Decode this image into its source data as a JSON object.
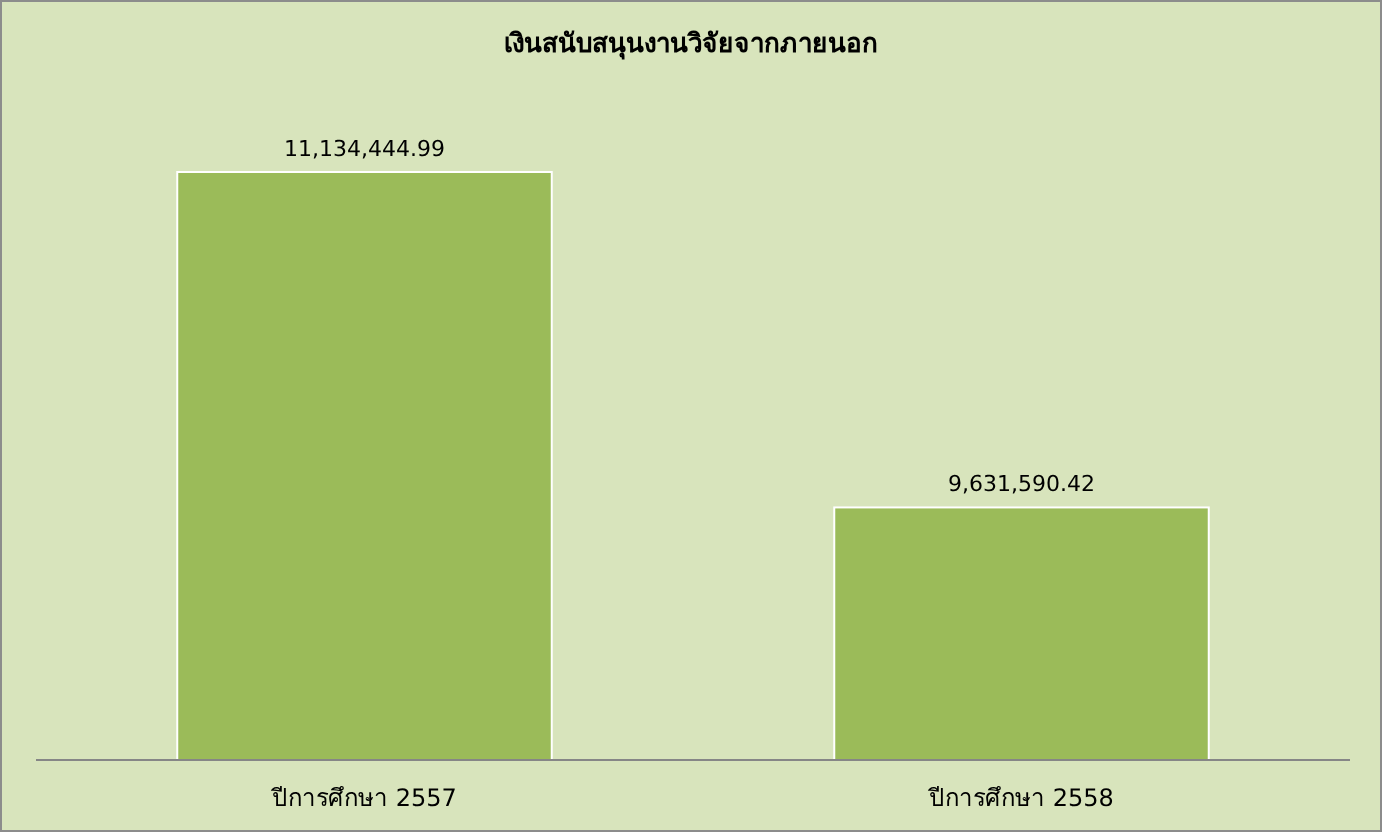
{
  "chart_data": {
    "type": "bar",
    "title": "เงินสนับสนุนงานวิจัยจากภายนอก",
    "categories": [
      "ปีการศึกษา 2557",
      "ปีการศึกษา 2558"
    ],
    "values": [
      11134444.99,
      9631590.42
    ],
    "value_labels": [
      "11,134,444.99",
      "9,631,590.42"
    ],
    "color": "#9bbb59",
    "ylim": [
      8500000,
      11134444.99
    ]
  }
}
